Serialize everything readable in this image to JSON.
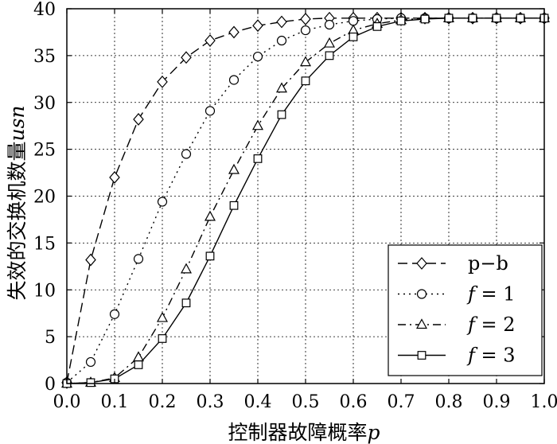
{
  "chart_data": {
    "type": "line",
    "title": "",
    "xlabel": "控制器故障概率",
    "xlabel_symbol": "p",
    "ylabel": "失效的交换机数量",
    "ylabel_symbol": "usn",
    "xlim": [
      0,
      1
    ],
    "ylim": [
      0,
      40
    ],
    "x_ticks": [
      "0.0",
      "0.1",
      "0.2",
      "0.3",
      "0.4",
      "0.5",
      "0.6",
      "0.7",
      "0.8",
      "0.9",
      "1.0"
    ],
    "y_ticks": [
      "0",
      "5",
      "10",
      "15",
      "20",
      "25",
      "30",
      "35",
      "40"
    ],
    "grid": true,
    "legend_position": "bottom-right",
    "x": [
      0,
      0.05,
      0.1,
      0.15,
      0.2,
      0.25,
      0.3,
      0.35,
      0.4,
      0.45,
      0.5,
      0.55,
      0.6,
      0.65,
      0.7,
      0.75,
      0.8,
      0.85,
      0.9,
      0.95,
      1.0
    ],
    "series": [
      {
        "name": "p−b",
        "marker": "diamond",
        "dash": "dashed",
        "values": [
          0.1,
          13.2,
          22.0,
          28.2,
          32.2,
          34.8,
          36.6,
          37.5,
          38.2,
          38.6,
          38.9,
          39.0,
          39.0,
          39.0,
          39.0,
          39.0,
          39.0,
          39.0,
          39.0,
          39.0,
          39.0
        ]
      },
      {
        "name_italic": "f",
        "name_rest": " = 1",
        "marker": "circle",
        "dash": "dotted",
        "values": [
          0.1,
          2.3,
          7.4,
          13.3,
          19.4,
          24.5,
          29.1,
          32.4,
          34.9,
          36.6,
          37.7,
          38.3,
          38.7,
          38.9,
          39.0,
          39.0,
          39.0,
          39.0,
          39.0,
          39.0,
          39.0
        ]
      },
      {
        "name_italic": "f",
        "name_rest": " = 2",
        "marker": "triangle",
        "dash": "dashdot",
        "values": [
          0.0,
          0.1,
          0.6,
          2.8,
          7.0,
          12.2,
          17.8,
          22.8,
          27.5,
          31.5,
          34.3,
          36.3,
          37.7,
          38.4,
          38.8,
          39.0,
          39.0,
          39.0,
          39.0,
          39.0,
          39.0
        ]
      },
      {
        "name_italic": "f",
        "name_rest": " = 3",
        "marker": "square",
        "dash": "solid",
        "values": [
          0.0,
          0.1,
          0.5,
          2.0,
          4.8,
          8.6,
          13.6,
          19.0,
          24.0,
          28.7,
          32.3,
          35.0,
          37.0,
          38.1,
          38.7,
          38.9,
          39.0,
          39.0,
          39.0,
          39.0,
          39.0
        ]
      }
    ]
  }
}
